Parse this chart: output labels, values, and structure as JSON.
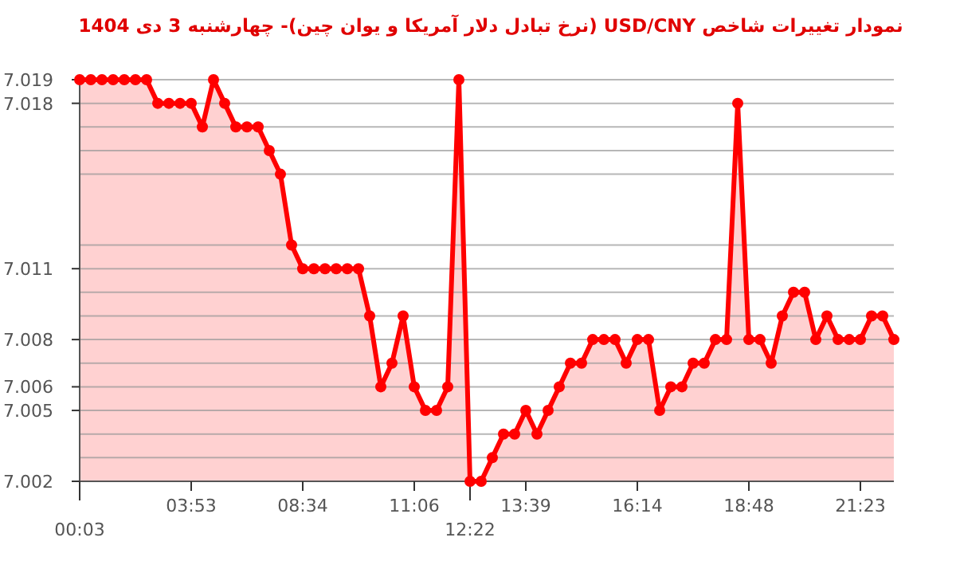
{
  "chart_data": {
    "type": "area",
    "title": "نمودار تغییرات شاخص USD/CNY (نرخ تبادل دلار آمریکا و یوان چین)- چهارشنبه  3 دی 1404",
    "categories": [
      "00:03",
      null,
      null,
      null,
      null,
      null,
      null,
      null,
      null,
      null,
      "03:53",
      null,
      null,
      null,
      null,
      null,
      null,
      null,
      null,
      null,
      "08:34",
      null,
      null,
      null,
      null,
      null,
      null,
      null,
      null,
      null,
      "11:06",
      null,
      null,
      null,
      null,
      "12:22",
      null,
      null,
      null,
      null,
      "13:39",
      null,
      null,
      null,
      null,
      null,
      null,
      null,
      null,
      null,
      "16:14",
      null,
      null,
      null,
      null,
      null,
      null,
      null,
      null,
      null,
      "18:48",
      null,
      null,
      null,
      null,
      null,
      null,
      null,
      null,
      null,
      "21:23",
      null,
      null,
      null
    ],
    "series": [
      {
        "color": "#ff0000",
        "values": [
          7.019,
          7.019,
          7.019,
          7.019,
          7.019,
          7.019,
          7.019,
          7.018,
          7.018,
          7.018,
          7.018,
          7.017,
          7.019,
          7.018,
          7.017,
          7.017,
          7.017,
          7.016,
          7.015,
          7.012,
          7.011,
          7.011,
          7.011,
          7.011,
          7.011,
          7.011,
          7.009,
          7.006,
          7.007,
          7.009,
          7.006,
          7.005,
          7.005,
          7.006,
          7.019,
          7.002,
          7.002,
          7.003,
          7.004,
          7.004,
          7.005,
          7.004,
          7.005,
          7.006,
          7.007,
          7.007,
          7.008,
          7.008,
          7.008,
          7.007,
          7.008,
          7.008,
          7.005,
          7.006,
          7.006,
          7.007,
          7.007,
          7.008,
          7.008,
          7.018,
          7.008,
          7.008,
          7.007,
          7.009,
          7.01,
          7.01,
          7.008,
          7.009,
          7.008,
          7.008,
          7.008,
          7.009,
          7.009,
          7.008
        ]
      }
    ],
    "ylim": [
      7.002,
      7.019
    ],
    "yticks": [
      7.002,
      {
        "value": 7.003,
        "label": null
      },
      {
        "value": 7.004,
        "label": null
      },
      7.005,
      7.006,
      {
        "value": 7.007,
        "label": null
      },
      7.008,
      {
        "value": 7.009,
        "label": null
      },
      {
        "value": 7.01,
        "label": null
      },
      7.011,
      {
        "value": 7.012,
        "label": null
      },
      {
        "value": 7.015,
        "label": null
      },
      {
        "value": 7.016,
        "label": null
      },
      {
        "value": 7.017,
        "label": null
      },
      7.018,
      7.019
    ],
    "grid": "y",
    "marker": "circle"
  }
}
